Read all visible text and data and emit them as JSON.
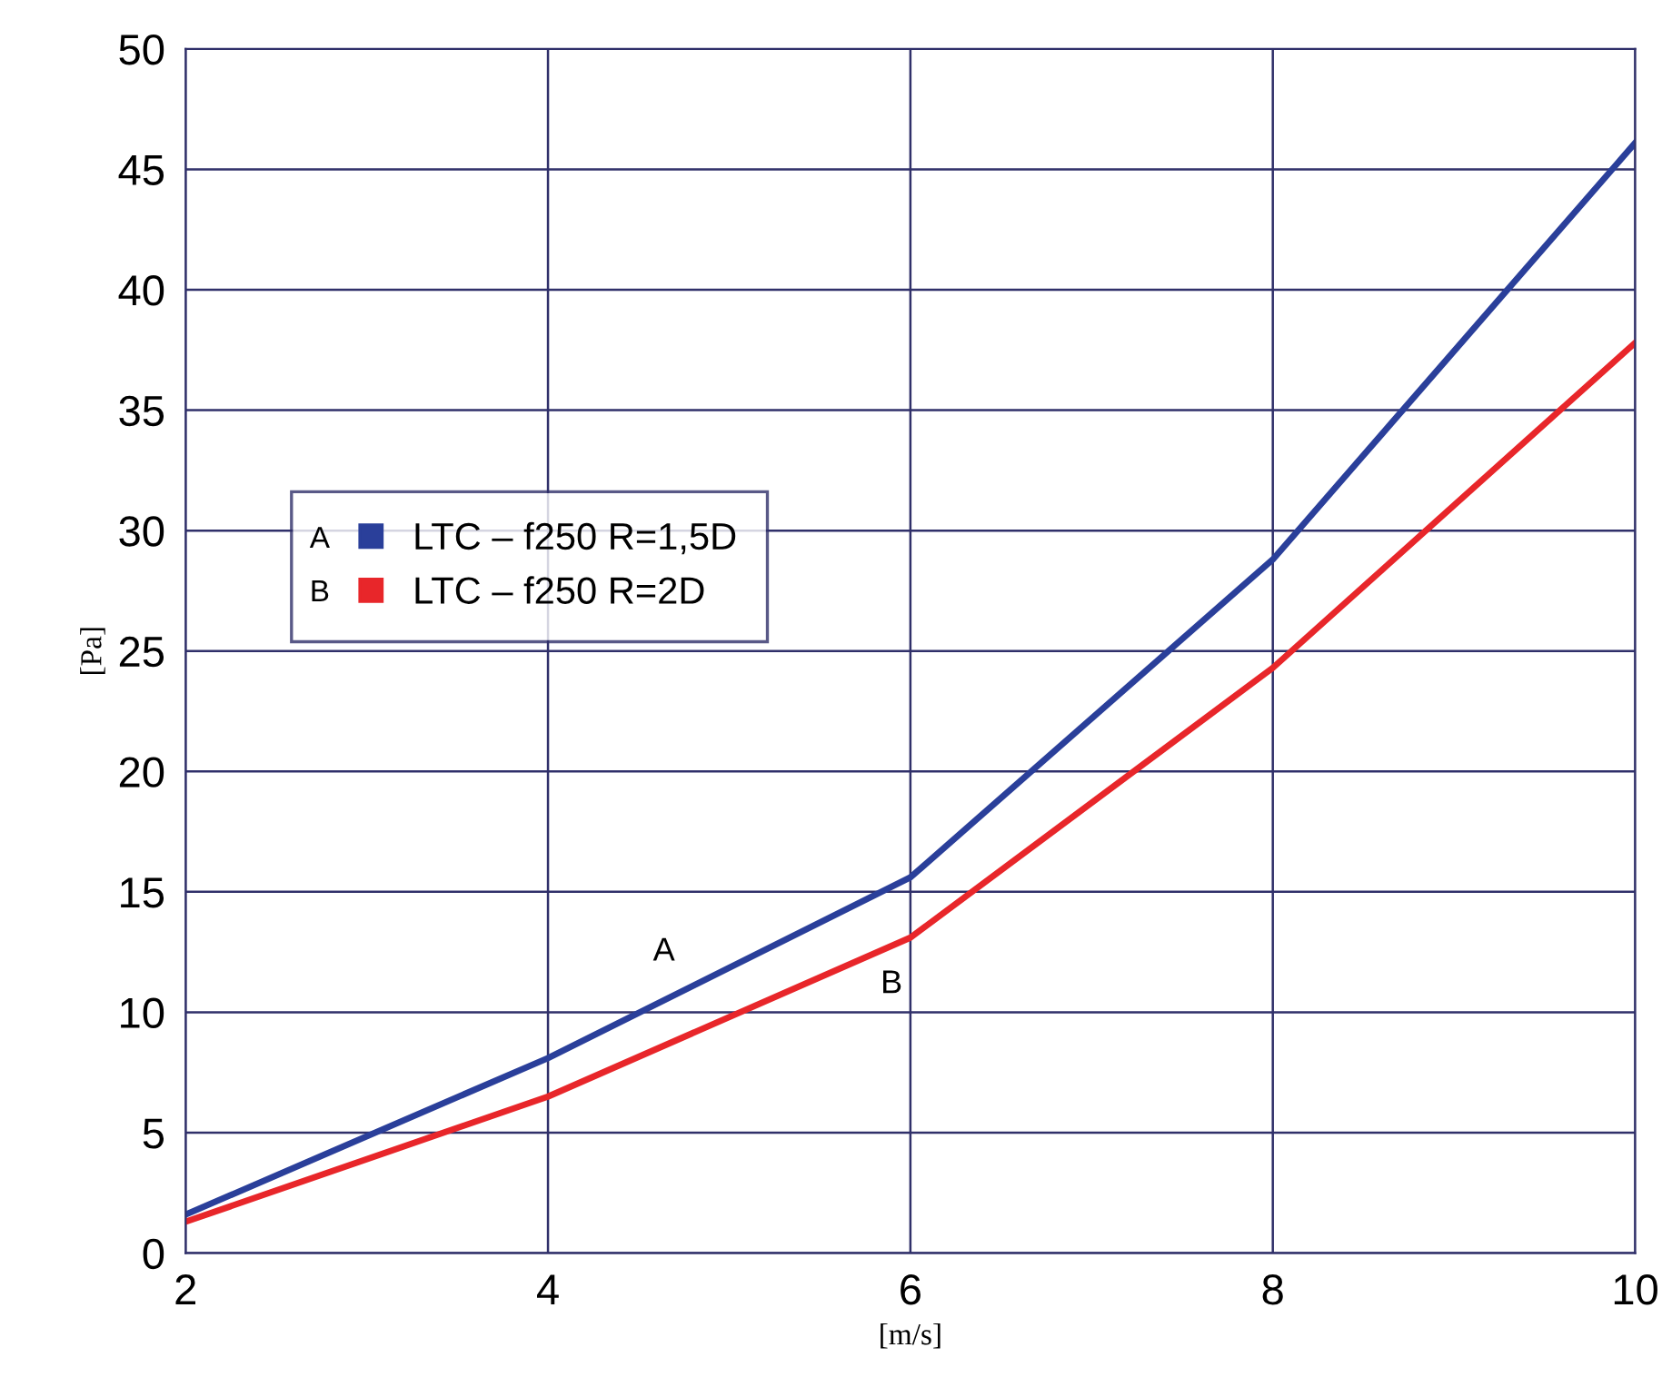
{
  "chart_data": {
    "type": "line",
    "xlabel": "[m/s]",
    "ylabel": "[Pa]",
    "x": [
      2,
      4,
      6,
      8,
      10
    ],
    "series": [
      {
        "name": "LTC – f250 R=1,5D",
        "color": "#2a3f9a",
        "values": [
          1.6,
          8.1,
          15.6,
          28.8,
          46.1
        ]
      },
      {
        "name": "LTC – f250 R=2D",
        "color": "#e8262a",
        "values": [
          1.3,
          6.5,
          13.1,
          24.3,
          37.8
        ]
      }
    ],
    "xlim": [
      2,
      10
    ],
    "xticks": [
      2,
      4,
      6,
      8,
      10
    ],
    "ylim": [
      0,
      50
    ],
    "yticks": [
      0,
      5,
      10,
      15,
      20,
      25,
      30,
      35,
      40,
      45,
      50
    ],
    "grid": true,
    "legend": "left",
    "marker": "none",
    "line_style": "solid",
    "annotations": [
      "A",
      "B"
    ]
  }
}
